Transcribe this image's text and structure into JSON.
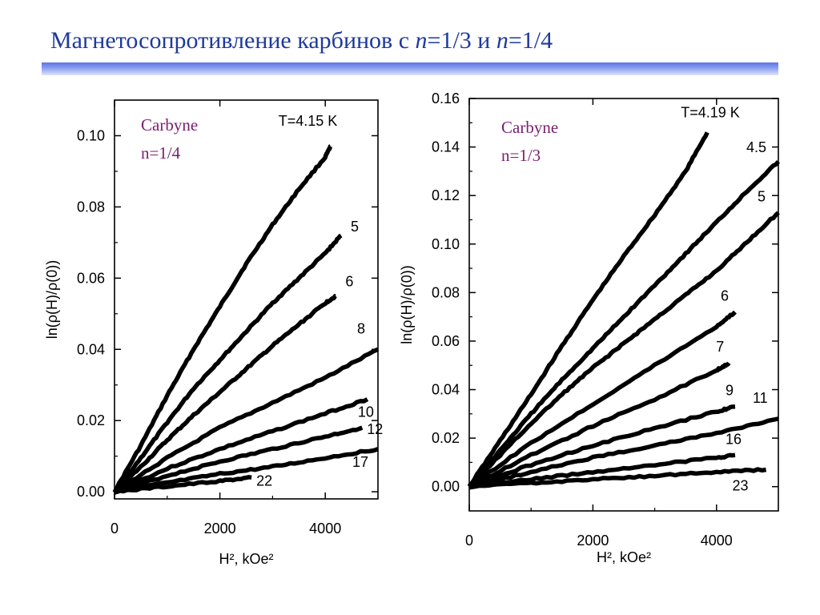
{
  "title": {
    "text_a": "Магнетосопротивление карбинов с ",
    "n_a": "n",
    "text_b": "=1/3 и ",
    "n_b": "n",
    "text_c": "=1/4"
  },
  "colors": {
    "title": "#1e3a9c",
    "rule": "#5c74e6",
    "sample_label": "#7a1e6e",
    "curves": "#000000"
  },
  "chart_data": [
    {
      "type": "line",
      "sample_label": [
        "Carbyne",
        "n=1/4"
      ],
      "xlabel": "H², kOe²",
      "ylabel": "ln(ρ(H)/ρ(0))",
      "xlim": [
        0,
        5000
      ],
      "ylim": [
        -0.002,
        0.11
      ],
      "x_ticks": [
        0,
        2000,
        4000
      ],
      "y_ticks": [
        0.0,
        0.02,
        0.04,
        0.06,
        0.08,
        0.1
      ],
      "y_tick_labels": [
        "0.00",
        "0.02",
        "0.04",
        "0.06",
        "0.08",
        "0.10"
      ],
      "series": [
        {
          "name": "T=4.15 K",
          "x": [
            0,
            500,
            1000,
            1500,
            2000,
            2500,
            3000,
            3500,
            4000,
            4100
          ],
          "y": [
            0.0,
            0.013,
            0.027,
            0.04,
            0.052,
            0.064,
            0.075,
            0.085,
            0.094,
            0.097
          ]
        },
        {
          "name": "5",
          "x": [
            0,
            500,
            1000,
            1500,
            2000,
            2500,
            3000,
            3500,
            4000,
            4300
          ],
          "y": [
            0.0,
            0.0095,
            0.0195,
            0.029,
            0.037,
            0.045,
            0.053,
            0.06,
            0.067,
            0.072
          ]
        },
        {
          "name": "6",
          "x": [
            0,
            500,
            1000,
            1500,
            2000,
            2500,
            3000,
            3500,
            4000,
            4200
          ],
          "y": [
            0.0,
            0.007,
            0.0145,
            0.0215,
            0.028,
            0.0345,
            0.041,
            0.047,
            0.053,
            0.055
          ]
        },
        {
          "name": "8",
          "x": [
            0,
            1000,
            2000,
            3000,
            4000,
            5000
          ],
          "y": [
            0.0,
            0.0095,
            0.018,
            0.025,
            0.032,
            0.04
          ]
        },
        {
          "name": "10",
          "x": [
            0,
            1000,
            2000,
            3000,
            4000,
            4800
          ],
          "y": [
            0.0,
            0.0065,
            0.012,
            0.017,
            0.022,
            0.026
          ]
        },
        {
          "name": "12",
          "x": [
            0,
            1000,
            2000,
            3000,
            4000,
            4700
          ],
          "y": [
            0.0,
            0.0045,
            0.0085,
            0.012,
            0.0155,
            0.018
          ]
        },
        {
          "name": "17",
          "x": [
            0,
            1000,
            2000,
            3000,
            4000,
            5000
          ],
          "y": [
            0.0,
            0.0025,
            0.005,
            0.007,
            0.0095,
            0.012
          ]
        },
        {
          "name": "22",
          "x": [
            0,
            1000,
            2000,
            2600
          ],
          "y": [
            0.0,
            0.0015,
            0.003,
            0.004
          ]
        }
      ]
    },
    {
      "type": "line",
      "sample_label": [
        "Carbyne",
        "n=1/3"
      ],
      "xlabel": "H², kOe²",
      "ylabel": "ln(ρ(H)/ρ(0))",
      "xlim": [
        0,
        5000
      ],
      "ylim": [
        -0.01,
        0.16
      ],
      "x_ticks": [
        0,
        2000,
        4000
      ],
      "y_ticks": [
        0.0,
        0.02,
        0.04,
        0.06,
        0.08,
        0.1,
        0.12,
        0.14,
        0.16
      ],
      "y_tick_labels": [
        "0.00",
        "0.02",
        "0.04",
        "0.06",
        "0.08",
        "0.10",
        "0.12",
        "0.14",
        "0.16"
      ],
      "series": [
        {
          "name": "T=4.19 K",
          "x": [
            0,
            500,
            1000,
            1500,
            2000,
            2500,
            3000,
            3500,
            3850
          ],
          "y": [
            0.0,
            0.019,
            0.038,
            0.058,
            0.077,
            0.095,
            0.112,
            0.13,
            0.146
          ]
        },
        {
          "name": "4.5",
          "x": [
            0,
            500,
            1000,
            1500,
            2000,
            2500,
            3000,
            3500,
            4000,
            4500,
            5000
          ],
          "y": [
            0.0,
            0.015,
            0.03,
            0.044,
            0.057,
            0.07,
            0.083,
            0.096,
            0.109,
            0.122,
            0.134
          ]
        },
        {
          "name": "5",
          "x": [
            0,
            500,
            1000,
            1500,
            2000,
            2500,
            3000,
            3500,
            4000,
            4500,
            5000
          ],
          "y": [
            0.0,
            0.013,
            0.026,
            0.038,
            0.049,
            0.059,
            0.069,
            0.079,
            0.089,
            0.101,
            0.113
          ]
        },
        {
          "name": "6",
          "x": [
            0,
            1000,
            2000,
            3000,
            4000,
            4300
          ],
          "y": [
            0.0,
            0.018,
            0.034,
            0.05,
            0.066,
            0.072
          ]
        },
        {
          "name": "7",
          "x": [
            0,
            1000,
            2000,
            3000,
            4000,
            4200
          ],
          "y": [
            0.0,
            0.013,
            0.025,
            0.036,
            0.048,
            0.051
          ]
        },
        {
          "name": "9",
          "x": [
            0,
            1000,
            2000,
            3000,
            4000,
            4300
          ],
          "y": [
            0.0,
            0.009,
            0.017,
            0.024,
            0.031,
            0.033
          ]
        },
        {
          "name": "11",
          "x": [
            0,
            1000,
            2000,
            3000,
            4000,
            5000
          ],
          "y": [
            0.0,
            0.006,
            0.012,
            0.017,
            0.022,
            0.028
          ]
        },
        {
          "name": "16",
          "x": [
            0,
            1000,
            2000,
            3000,
            4000,
            4300
          ],
          "y": [
            0.0,
            0.003,
            0.006,
            0.009,
            0.012,
            0.013
          ]
        },
        {
          "name": "23",
          "x": [
            0,
            1000,
            2000,
            3000,
            4000,
            4800
          ],
          "y": [
            0.0,
            0.0015,
            0.003,
            0.0045,
            0.006,
            0.007
          ]
        }
      ]
    }
  ]
}
